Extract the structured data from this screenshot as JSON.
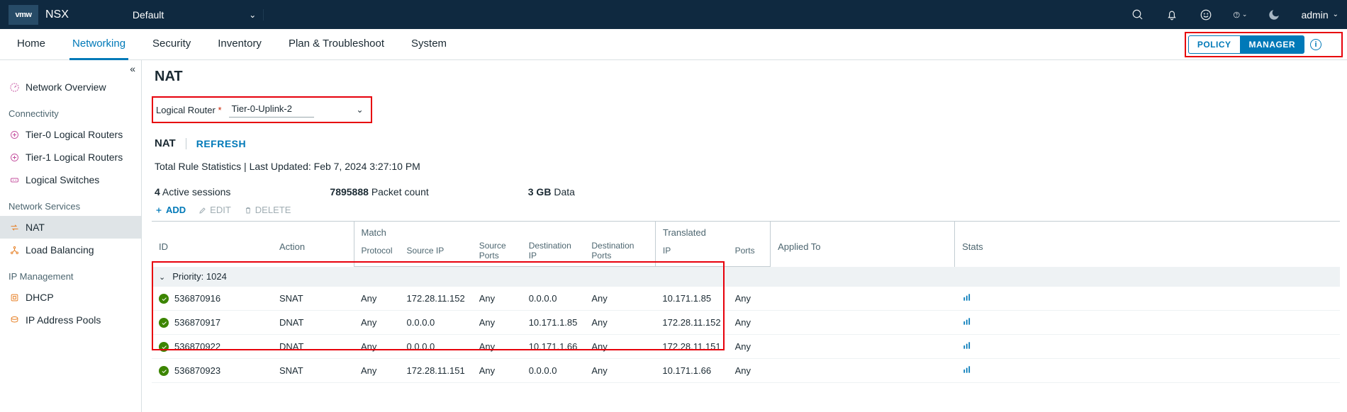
{
  "brand": {
    "logo": "vmw",
    "name": "NSX",
    "env": "Default"
  },
  "user": "admin",
  "tabs": [
    "Home",
    "Networking",
    "Security",
    "Inventory",
    "Plan & Troubleshoot",
    "System"
  ],
  "tabs_active_index": 1,
  "view_switch": {
    "left": "POLICY",
    "right": "MANAGER"
  },
  "sidebar": {
    "overview": "Network Overview",
    "groups": [
      {
        "label": "Connectivity",
        "items": [
          "Tier-0 Logical Routers",
          "Tier-1 Logical Routers",
          "Logical Switches"
        ],
        "icon": "pink"
      },
      {
        "label": "Network Services",
        "items": [
          "NAT",
          "Load Balancing"
        ],
        "icon": "orange",
        "active_index": 0
      },
      {
        "label": "IP Management",
        "items": [
          "DHCP",
          "IP Address Pools"
        ],
        "icon": "orange"
      }
    ]
  },
  "page": {
    "title": "NAT",
    "router_label": "Logical Router",
    "router_value": "Tier-0-Uplink-2",
    "subtab": "NAT",
    "refresh": "REFRESH",
    "stats_line": "Total Rule Statistics | Last Updated: Feb 7, 2024 3:27:10 PM",
    "metrics": [
      {
        "n": "4",
        "t": "Active sessions"
      },
      {
        "n": "7895888",
        "t": "Packet count"
      },
      {
        "n": "3 GB",
        "t": "Data"
      }
    ],
    "actions": {
      "add": "ADD",
      "edit": "EDIT",
      "delete": "DELETE"
    }
  },
  "table": {
    "header": {
      "id": "ID",
      "action": "Action",
      "match": "Match",
      "translated": "Translated",
      "protocol": "Protocol",
      "srcip": "Source IP",
      "srcports": "Source Ports",
      "dstip": "Destination IP",
      "dstports": "Destination Ports",
      "tip": "IP",
      "tports": "Ports",
      "applied": "Applied To",
      "stats": "Stats"
    },
    "priority_label": "Priority: 1024",
    "rows": [
      {
        "id": "536870916",
        "action": "SNAT",
        "proto": "Any",
        "sip": "172.28.11.152",
        "sports": "Any",
        "dip": "0.0.0.0",
        "dports": "Any",
        "tip": "10.171.1.85",
        "tports": "Any"
      },
      {
        "id": "536870917",
        "action": "DNAT",
        "proto": "Any",
        "sip": "0.0.0.0",
        "sports": "Any",
        "dip": "10.171.1.85",
        "dports": "Any",
        "tip": "172.28.11.152",
        "tports": "Any"
      },
      {
        "id": "536870922",
        "action": "DNAT",
        "proto": "Any",
        "sip": "0.0.0.0",
        "sports": "Any",
        "dip": "10.171.1.66",
        "dports": "Any",
        "tip": "172.28.11.151",
        "tports": "Any"
      },
      {
        "id": "536870923",
        "action": "SNAT",
        "proto": "Any",
        "sip": "172.28.11.151",
        "sports": "Any",
        "dip": "0.0.0.0",
        "dports": "Any",
        "tip": "10.171.1.66",
        "tports": "Any"
      }
    ]
  },
  "colors": {
    "accent": "#0079b8",
    "danger": "#e7000b",
    "topbar": "#0f2940"
  }
}
